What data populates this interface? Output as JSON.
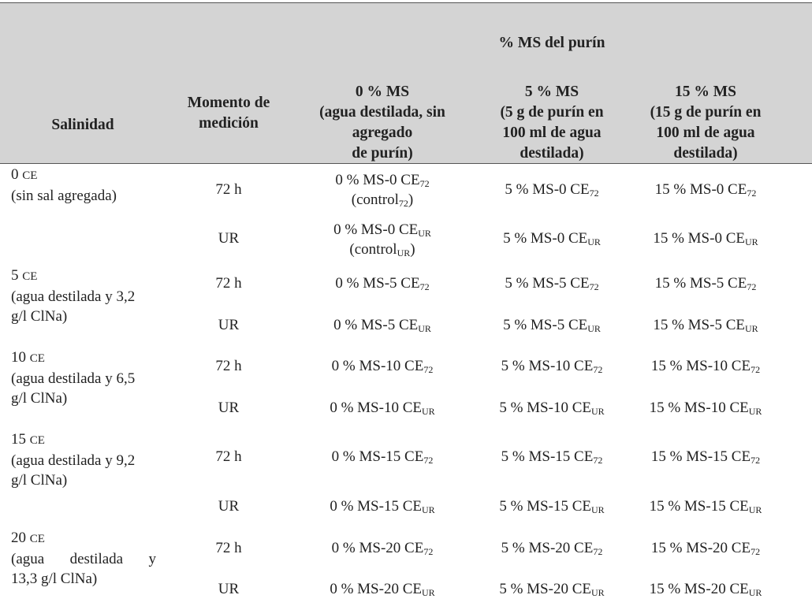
{
  "header": {
    "top": "% MS del purín",
    "salinidad": "Salinidad",
    "momento": [
      "Momento de",
      "medición"
    ],
    "col0": [
      "0 % MS",
      "(agua destilada, sin",
      "agregado",
      "de purín)"
    ],
    "col5": [
      "5 % MS",
      "(5 g de purín en",
      "100 ml de agua",
      "destilada)"
    ],
    "col15": [
      "15 % MS",
      "(15 g de purín en",
      "100 ml de agua",
      "destilada)"
    ]
  },
  "groups": [
    {
      "sal_value": "0",
      "sal_unit": "CE",
      "sal_desc": [
        "(sin sal agregada)"
      ],
      "rows": [
        {
          "momento": "72 h",
          "c0": "0 % MS-0 CE",
          "c0_sub": "72",
          "c0_extra": "(control",
          "c0_extra_sub": "72",
          "c0_extra_end": ")",
          "c5": "5 % MS-0 CE",
          "c5_sub": "72",
          "c15": "15 % MS-0 CE",
          "c15_sub": "72"
        },
        {
          "momento": "UR",
          "c0": "0 % MS-0 CE",
          "c0_sub": "UR",
          "c0_extra": "(control",
          "c0_extra_sub": "UR",
          "c0_extra_end": ")",
          "c5": "5 % MS-0 CE",
          "c5_sub": "UR",
          "c15": "15 % MS-0 CE",
          "c15_sub": "UR"
        }
      ]
    },
    {
      "sal_value": "5",
      "sal_unit": "CE",
      "sal_desc": [
        "(agua destilada y 3,2",
        "g/l ClNa)"
      ],
      "rows": [
        {
          "momento": "72 h",
          "c0": "0 % MS-5 CE",
          "c0_sub": "72",
          "c5": "5 % MS-5 CE",
          "c5_sub": "72",
          "c15": "15 % MS-5 CE",
          "c15_sub": "72"
        },
        {
          "momento": "UR",
          "c0": "0 % MS-5 CE",
          "c0_sub": "UR",
          "c5": "5 % MS-5 CE",
          "c5_sub": "UR",
          "c15": "15 % MS-5 CE",
          "c15_sub": "UR"
        }
      ]
    },
    {
      "sal_value": "10",
      "sal_unit": "CE",
      "sal_desc": [
        "(agua destilada y 6,5",
        "g/l ClNa)"
      ],
      "rows": [
        {
          "momento": "72 h",
          "c0": "0 % MS-10 CE",
          "c0_sub": "72",
          "c5": "5 % MS-10 CE",
          "c5_sub": "72",
          "c15": "15 % MS-10 CE",
          "c15_sub": "72"
        },
        {
          "momento": "UR",
          "c0": "0 % MS-10 CE",
          "c0_sub": "UR",
          "c5": "5 % MS-10 CE",
          "c5_sub": "UR",
          "c15": "15 % MS-10 CE",
          "c15_sub": "UR"
        }
      ]
    },
    {
      "sal_value": "15",
      "sal_unit": "CE",
      "sal_desc": [
        "(agua destilada y 9,2",
        "g/l ClNa)"
      ],
      "rows": [
        {
          "momento": "72 h",
          "c0": "0 % MS-15 CE",
          "c0_sub": "72",
          "c5": "5 % MS-15 CE",
          "c5_sub": "72",
          "c15": "15 % MS-15 CE",
          "c15_sub": "72"
        },
        {
          "momento": "UR",
          "c0": "0 % MS-15 CE",
          "c0_sub": "UR",
          "c5": "5 % MS-15 CE",
          "c5_sub": "UR",
          "c15": "15 % MS-15 CE",
          "c15_sub": "UR"
        }
      ]
    },
    {
      "sal_value": "20",
      "sal_unit": "CE",
      "sal_desc_spread": [
        "(agua",
        "destilada",
        "y"
      ],
      "sal_desc": [
        "13,3 g/l ClNa)"
      ],
      "rows": [
        {
          "momento": "72 h",
          "c0": "0 % MS-20 CE",
          "c0_sub": "72",
          "c5": "5 % MS-20 CE",
          "c5_sub": "72",
          "c15": "15 % MS-20 CE",
          "c15_sub": "72"
        },
        {
          "momento": "UR",
          "c0": "0 % MS-20 CE",
          "c0_sub": "UR",
          "c5": "5 % MS-20 CE",
          "c5_sub": "UR",
          "c15": "15 % MS-20 CE",
          "c15_sub": "UR"
        }
      ]
    }
  ]
}
